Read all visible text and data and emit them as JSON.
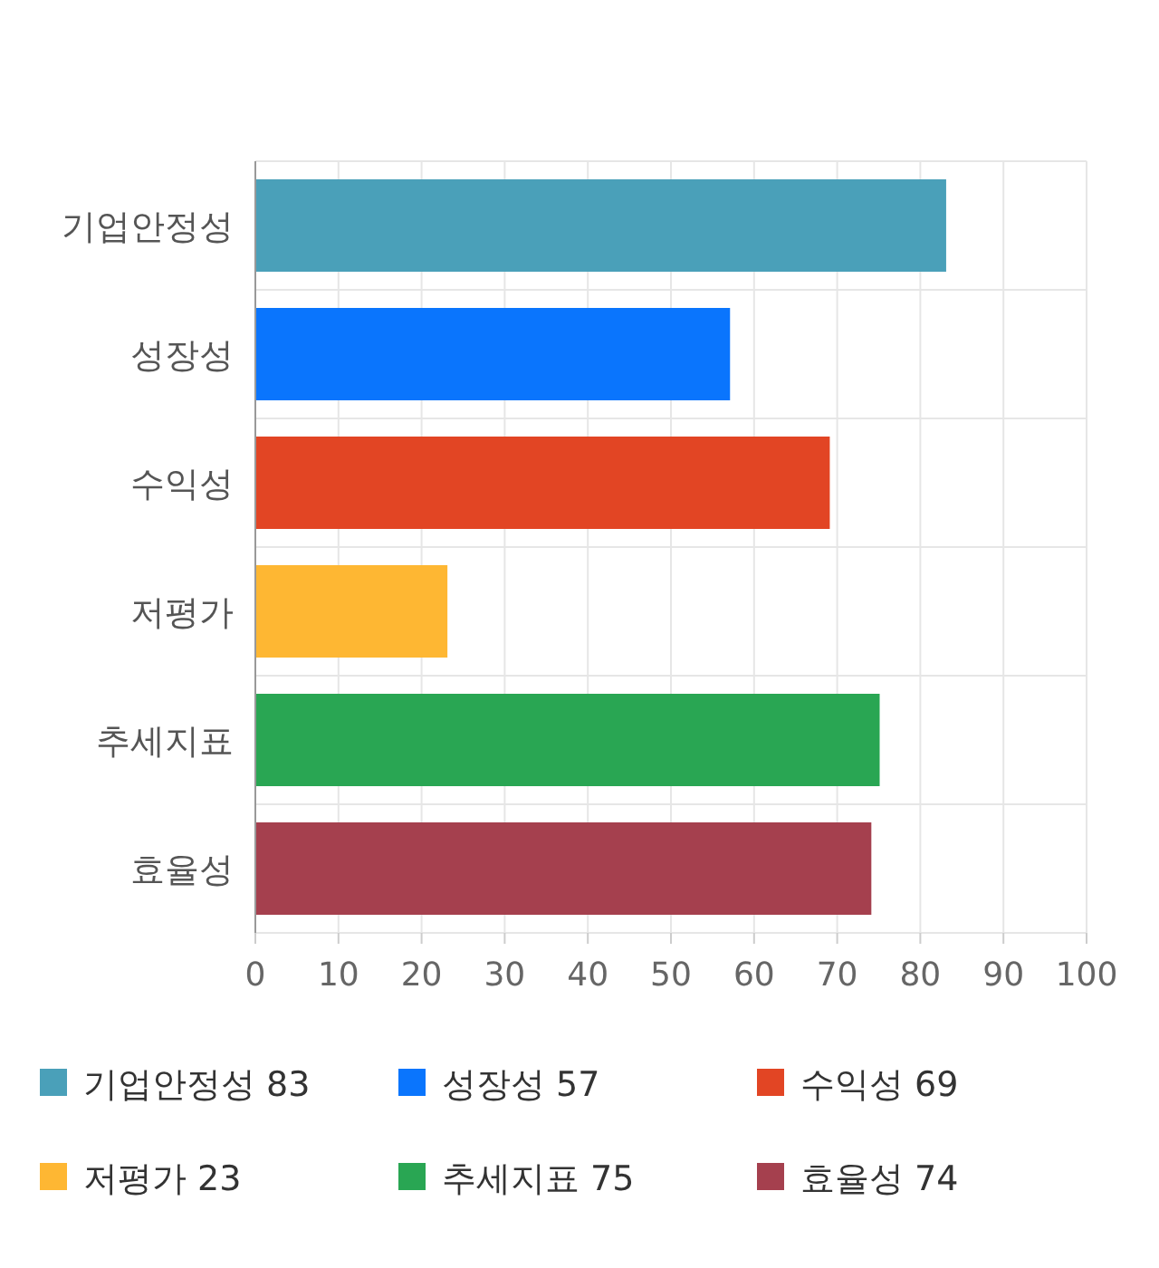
{
  "chart_data": {
    "type": "bar",
    "orientation": "horizontal",
    "stacked": true,
    "categories": [
      "기업안정성",
      "성장성",
      "수익성",
      "저평가",
      "추세지표",
      "효율성"
    ],
    "series": [
      {
        "name": "기업안정성 83",
        "color": "#4aa0b9",
        "values": [
          83,
          null,
          null,
          null,
          null,
          null
        ]
      },
      {
        "name": "성장성 57",
        "color": "#0a75fd",
        "values": [
          null,
          57,
          null,
          null,
          null,
          null
        ]
      },
      {
        "name": "수익성 69",
        "color": "#e24524",
        "values": [
          null,
          null,
          69,
          null,
          null,
          null
        ]
      },
      {
        "name": "저평가 23",
        "color": "#feb733",
        "values": [
          null,
          null,
          null,
          23,
          null,
          null
        ]
      },
      {
        "name": "추세지표 75",
        "color": "#29a653",
        "values": [
          null,
          null,
          null,
          null,
          75,
          null
        ]
      },
      {
        "name": "효율성 74",
        "color": "#a5404e",
        "values": [
          null,
          null,
          null,
          null,
          null,
          74
        ]
      }
    ],
    "xlim": [
      0,
      100
    ],
    "xticks": [
      0,
      10,
      20,
      30,
      40,
      50,
      60,
      70,
      80,
      90,
      100
    ],
    "grid": true,
    "legend": "bottom"
  }
}
